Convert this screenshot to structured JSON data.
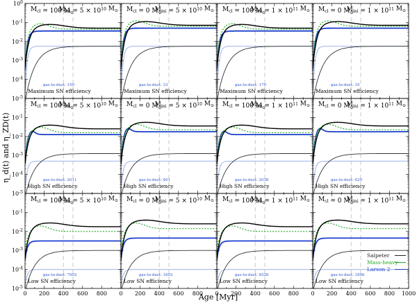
{
  "chart_data": {
    "type": "line",
    "xlabel": "Age [Myr]",
    "ylabel": "η_d(t)  and  η_ZD(t)",
    "xlim": [
      0,
      1000
    ],
    "ylim_log10": [
      -5,
      0
    ],
    "x_ticks": [
      0,
      200,
      400,
      600,
      800
    ],
    "x_ticks_last": [
      0,
      200,
      400,
      600,
      800,
      1000
    ],
    "x_tick_labels": [
      "0",
      "200",
      "400",
      "600",
      "800"
    ],
    "x_tick_labels_last": [
      "0",
      "200",
      "400",
      "600",
      "800",
      "1000"
    ],
    "y_tick_labels": [
      "10^-5",
      "10^-4",
      "10^-3",
      "10^-2",
      "10^-1",
      "10^0"
    ],
    "vlines": [
      400,
      500
    ],
    "legend": {
      "position": "bottom-right",
      "entries": [
        {
          "name": "Salpeter",
          "color": "#222222"
        },
        {
          "name": "Mass-heavy",
          "color": "#22aa22"
        },
        {
          "name": "Larson 2",
          "color": "#1a3fcc"
        }
      ]
    },
    "columns": [
      {
        "title_left": "M_cl = 100 M_⊙",
        "title_right": "M_ini = 5 × 10^10 M_⊙"
      },
      {
        "title_left": "M_cl = 0 M_⊙",
        "title_right": "M_ini = 5 × 10^10 M_⊙"
      },
      {
        "title_left": "M_cl = 100 M_⊙",
        "title_right": "M_ini = 1 × 10^11 M_⊙"
      },
      {
        "title_left": "M_cl = 0 M_⊙",
        "title_right": "M_ini = 1 × 10^11 M_⊙"
      }
    ],
    "rows": [
      {
        "label": "Maximum SN efficiency",
        "gas_to_dust": [
          "150",
          "33",
          "170",
          "35"
        ]
      },
      {
        "label": "High SN efficiency",
        "gas_to_dust": [
          "2011",
          "401",
          "2036",
          "429"
        ]
      },
      {
        "label": "Low SN efficiency",
        "gas_to_dust": [
          "7902",
          "1602",
          "8526",
          "1896"
        ]
      }
    ],
    "gas_to_dust_prefix": "gas-to-dust:",
    "series_approx_log10": {
      "row1": {
        "eta_d_black": -1.3,
        "eta_d_green": -1.35,
        "eta_d_blue": -1.45,
        "eta_zd_black": -2.25,
        "eta_zd_blue": -2.25
      },
      "row2": {
        "eta_d_black": -1.6,
        "eta_d_green": -1.8,
        "eta_d_blue": -1.9,
        "eta_zd_black": -2.9,
        "eta_zd_blue": -3.3
      },
      "row3": {
        "eta_d_black": -1.75,
        "eta_d_green": -2.0,
        "eta_d_blue": -2.5,
        "eta_zd_black": -3.0,
        "eta_zd_blue": -4.0
      }
    }
  }
}
